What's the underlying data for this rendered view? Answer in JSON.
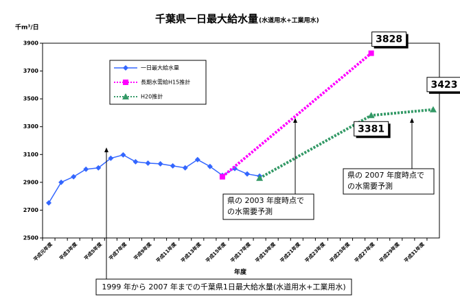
{
  "chart_data": {
    "type": "line",
    "title": "千葉県一日最大給水量",
    "subtitle": "(水道用水+工業用水)",
    "y_label": "千m³/日",
    "x_label": "年度",
    "categories": [
      "平成元年度",
      null,
      "平成3年度",
      null,
      "平成5年度",
      null,
      "平成7年度",
      null,
      "平成9年度",
      null,
      "平成11年度",
      null,
      "平成13年度",
      null,
      "平成15年度",
      null,
      "平成17年度",
      null,
      "平成19年度",
      null,
      "平成21年度",
      null,
      "平成23年度",
      null,
      "平成25年度",
      null,
      "平成27年度",
      null,
      "平成29年度",
      null,
      "平成31年度",
      null
    ],
    "ylim": [
      2500,
      3900
    ],
    "yticks": [
      2500,
      2700,
      2900,
      3100,
      3300,
      3500,
      3700,
      3900
    ],
    "grid": false,
    "series": [
      {
        "name": "一日最大給水量",
        "color": "#3366ff",
        "marker": "diamond",
        "dash": "solid",
        "connect_gaps": false,
        "values": [
          2752,
          2900,
          2940,
          2994,
          3004,
          3073,
          3097,
          3048,
          3038,
          3033,
          3018,
          3004,
          3063,
          3014,
          2950,
          2999,
          2960,
          2945,
          null,
          null,
          null,
          null,
          null,
          null,
          null,
          null,
          null,
          null,
          null,
          null,
          null,
          null
        ]
      },
      {
        "name": "長期水需給H15推計",
        "color": "#ff00ff",
        "marker": "square",
        "dash": "dotted",
        "connect_gaps": true,
        "values": [
          null,
          null,
          null,
          null,
          null,
          null,
          null,
          null,
          null,
          null,
          null,
          null,
          null,
          null,
          2940,
          null,
          null,
          null,
          null,
          null,
          null,
          null,
          null,
          null,
          null,
          null,
          3828,
          null,
          null,
          null,
          null,
          null
        ]
      },
      {
        "name": "H20推計",
        "color": "#339966",
        "marker": "triangle",
        "dash": "dotted",
        "connect_gaps": true,
        "values": [
          null,
          null,
          null,
          null,
          null,
          null,
          null,
          null,
          null,
          null,
          null,
          null,
          null,
          null,
          null,
          null,
          null,
          2930,
          null,
          null,
          null,
          null,
          null,
          null,
          null,
          null,
          3381,
          null,
          null,
          null,
          null,
          3423
        ]
      }
    ],
    "data_labels": [
      {
        "series": 1,
        "index": 26
      },
      {
        "series": 2,
        "index": 26
      },
      {
        "series": 2,
        "index": 31
      }
    ],
    "annotations": [
      {
        "lines": [
          "県の 2003 年度時点で",
          "の水需要予測"
        ]
      },
      {
        "lines": [
          "県の 2007 年度時点で",
          "の水需要予測"
        ]
      }
    ],
    "caption": "1999 年から 2007 年までの千葉県1日最大給水量(水道用水+工業用水)"
  }
}
